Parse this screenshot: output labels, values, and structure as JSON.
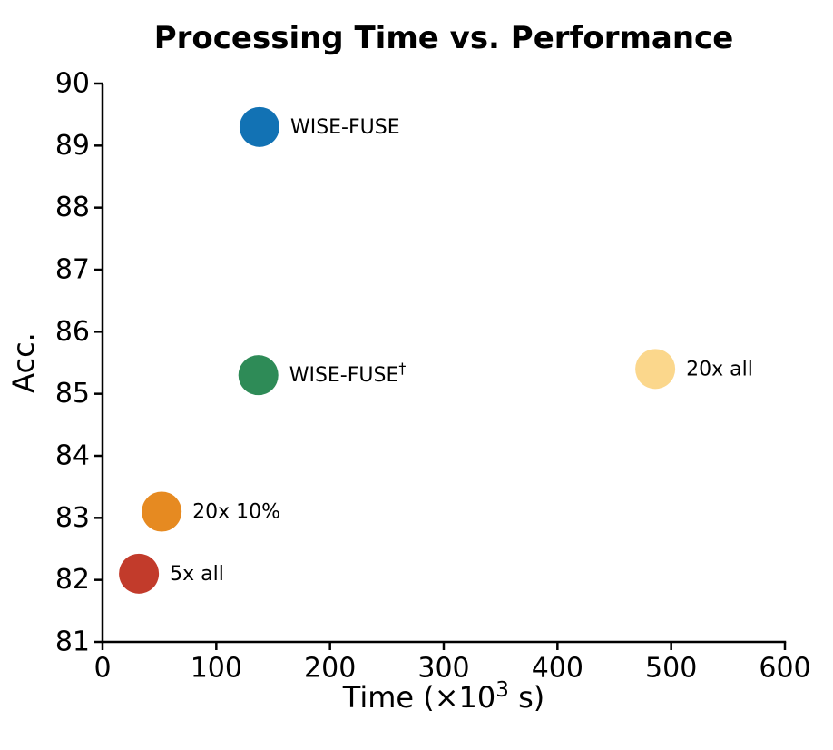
{
  "figure": {
    "background": "#ffffff"
  },
  "chart_data": {
    "type": "scatter",
    "title": "Processing Time vs. Performance",
    "xlabel": "Time (×10³ s)",
    "ylabel": "Acc.",
    "xlim": [
      0,
      600
    ],
    "ylim": [
      81,
      90
    ],
    "xticks": [
      0,
      100,
      200,
      300,
      400,
      500,
      600
    ],
    "yticks": [
      81,
      82,
      83,
      84,
      85,
      86,
      87,
      88,
      89,
      90
    ],
    "grid": false,
    "legend": "none",
    "axis_color": "#000000",
    "text_color": "#000000",
    "points": [
      {
        "label": "WISE-FUSE",
        "x": 138,
        "y": 89.3,
        "color": "#1272b4"
      },
      {
        "label": "WISE-FUSE†",
        "x": 137,
        "y": 85.3,
        "color": "#2e8b57"
      },
      {
        "label": "20x all",
        "x": 486,
        "y": 85.4,
        "color": "#fbd78c"
      },
      {
        "label": "20x 10%",
        "x": 52,
        "y": 83.1,
        "color": "#e68a21"
      },
      {
        "label": "5x all",
        "x": 32,
        "y": 82.1,
        "color": "#c23b2b"
      }
    ]
  }
}
